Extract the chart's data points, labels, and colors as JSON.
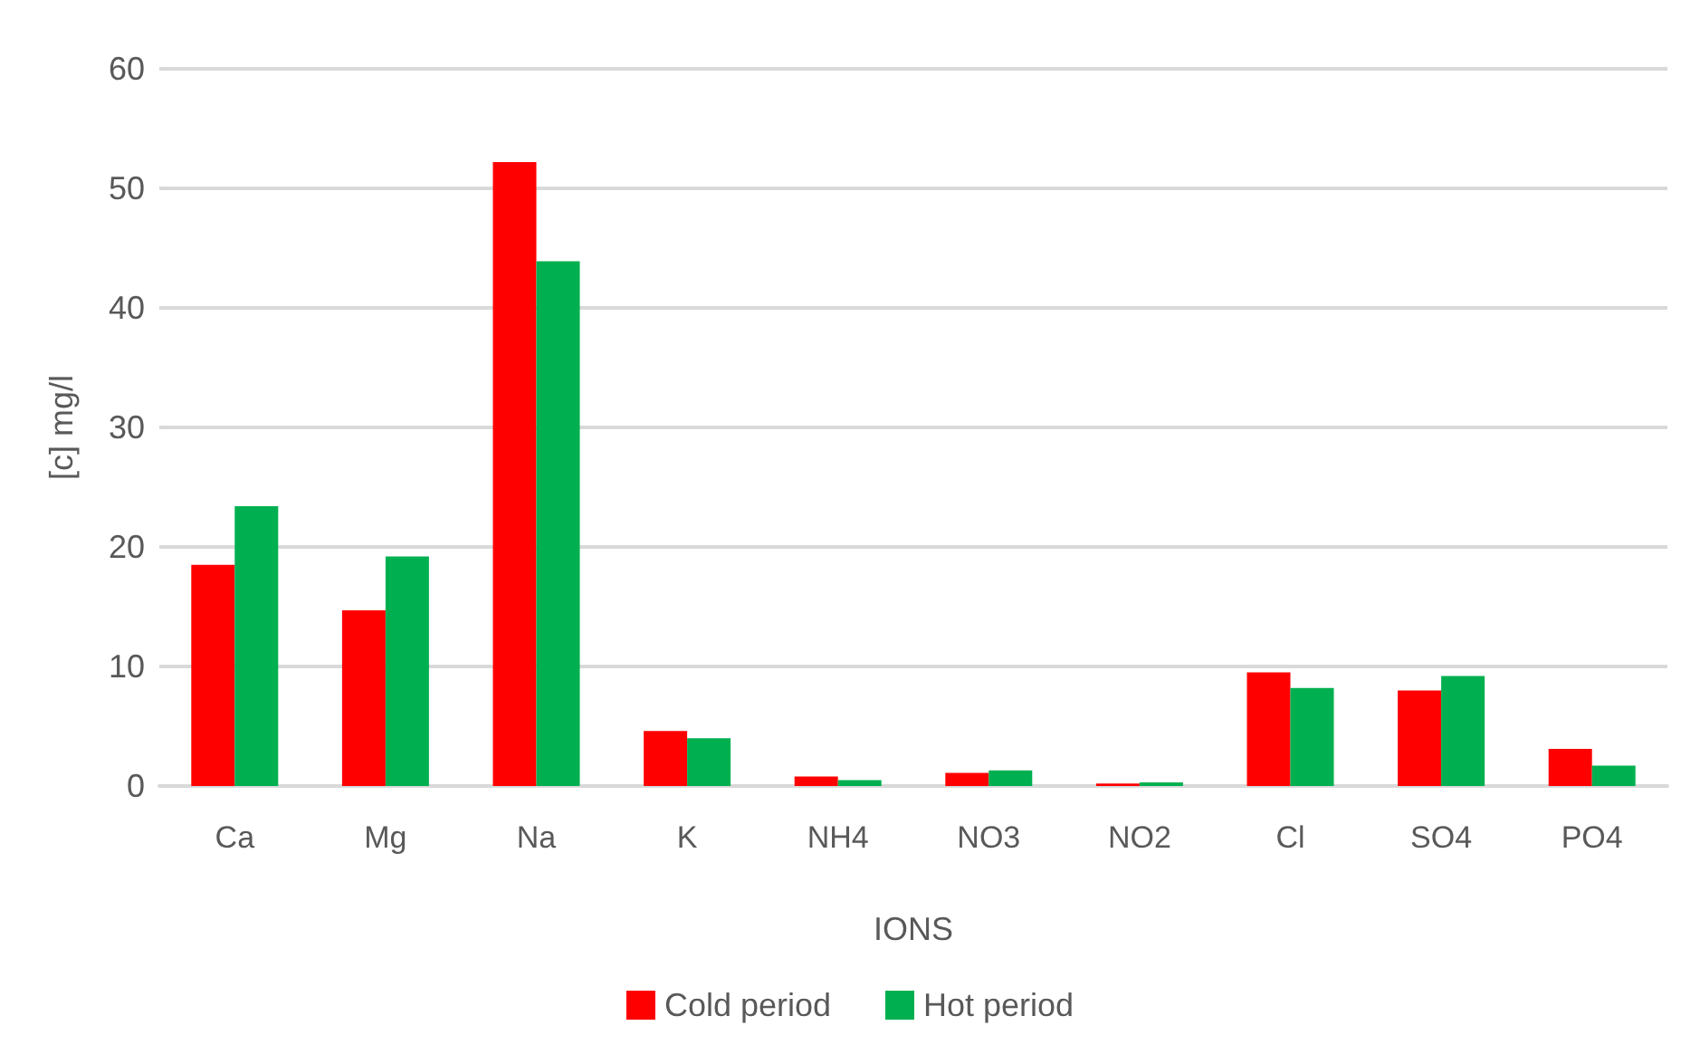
{
  "chart_data": {
    "type": "bar",
    "xlabel": "IONS",
    "ylabel": "[c] mg/l",
    "categories": [
      "Ca",
      "Mg",
      "Na",
      "K",
      "NH4",
      "NO3",
      "NO2",
      "Cl",
      "SO4",
      "PO4"
    ],
    "series": [
      {
        "name": "Cold period",
        "color": "#ff0000",
        "values": [
          18.5,
          14.7,
          52.2,
          4.6,
          0.8,
          1.1,
          0.2,
          9.5,
          8.0,
          3.1
        ]
      },
      {
        "name": "Hot period",
        "color": "#00b050",
        "values": [
          23.4,
          19.2,
          43.9,
          4.0,
          0.5,
          1.3,
          0.3,
          8.2,
          9.2,
          1.7
        ]
      }
    ],
    "ylim": [
      0,
      60
    ],
    "yticks": [
      0,
      10,
      20,
      30,
      40,
      50,
      60
    ],
    "grid": "y",
    "legend": "bottom"
  }
}
